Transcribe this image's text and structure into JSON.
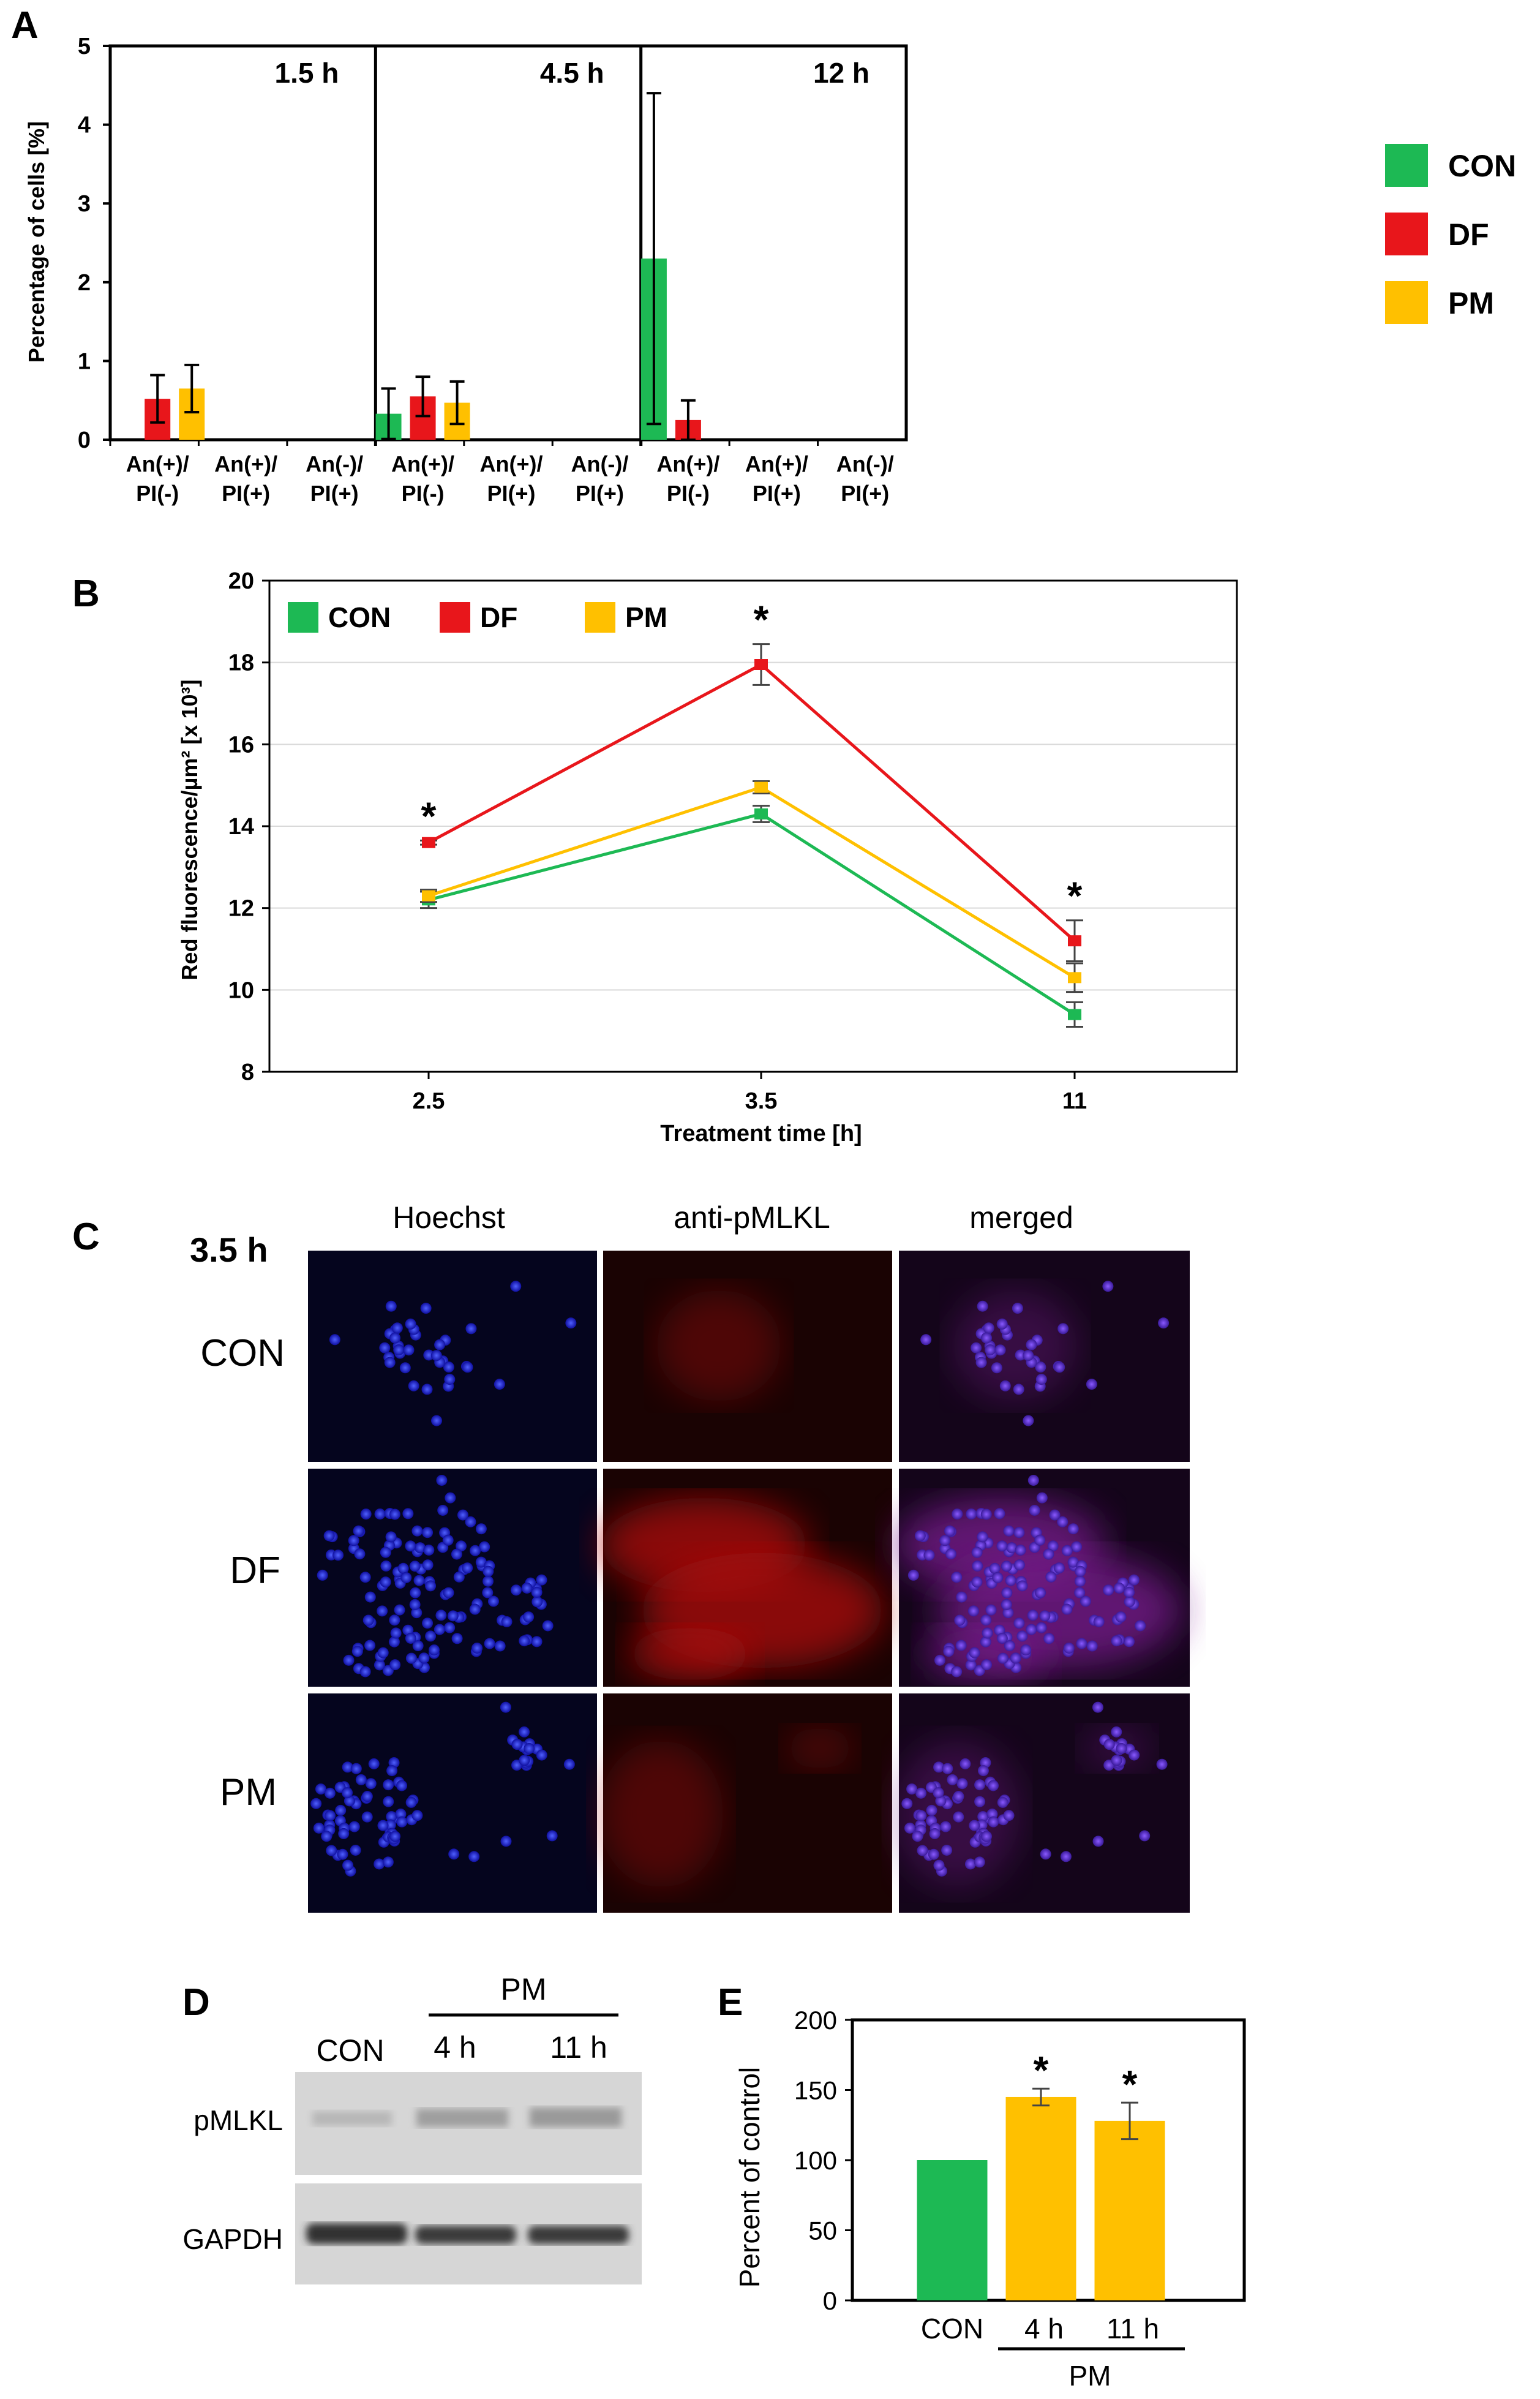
{
  "colors": {
    "con": "#1DB954",
    "df": "#E8161B",
    "pm": "#FFC000",
    "axis": "#000000",
    "grid": "#D9D9D9",
    "blot_bg": "#d8d8d8"
  },
  "panel_labels": [
    "A",
    "B",
    "C",
    "D",
    "E"
  ],
  "chart_data": [
    {
      "id": "A",
      "type": "bar",
      "ylabel": "Percentage  of cells [%]",
      "ylim": [
        0,
        5
      ],
      "yticks": [
        "0",
        "1",
        "2",
        "3",
        "4",
        "5"
      ],
      "legend": [
        {
          "name": "CON",
          "color_key": "con"
        },
        {
          "name": "DF",
          "color_key": "df"
        },
        {
          "name": "PM",
          "color_key": "pm"
        }
      ],
      "categories": [
        {
          "line1": "An(+)/",
          "line2": "PI(-)"
        },
        {
          "line1": "An(+)/",
          "line2": "PI(+)"
        },
        {
          "line1": "An(-)/",
          "line2": "PI(+)"
        }
      ],
      "subpanels": [
        {
          "title": "1.5 h",
          "series": {
            "CON": [
              0,
              0,
              0
            ],
            "DF": [
              0.52,
              0,
              0
            ],
            "PM": [
              0.65,
              0,
              0
            ]
          },
          "errors": {
            "CON": [
              0,
              0,
              0
            ],
            "DF": [
              0.3,
              0,
              0
            ],
            "PM": [
              0.3,
              0,
              0
            ]
          }
        },
        {
          "title": "4.5 h",
          "series": {
            "CON": [
              0.33,
              0,
              0
            ],
            "DF": [
              0.55,
              0,
              0
            ],
            "PM": [
              0.47,
              0,
              0
            ]
          },
          "errors": {
            "CON": [
              0.32,
              0,
              0
            ],
            "DF": [
              0.25,
              0,
              0
            ],
            "PM": [
              0.27,
              0,
              0
            ]
          }
        },
        {
          "title": "12 h",
          "series": {
            "CON": [
              2.3,
              0,
              0
            ],
            "DF": [
              0.25,
              0,
              0
            ],
            "PM": [
              0,
              0,
              0
            ]
          },
          "errors": {
            "CON": [
              2.1,
              0,
              0
            ],
            "DF": [
              0.25,
              0,
              0
            ],
            "PM": [
              0,
              0,
              0
            ]
          }
        }
      ]
    },
    {
      "id": "B",
      "type": "line",
      "xlabel": "Treatment time [h]",
      "ylabel": "Red fluorescence/µm² [x 10³]",
      "categories": [
        "2.5",
        "3.5",
        "11"
      ],
      "ylim": [
        8,
        20
      ],
      "yticks": [
        "8",
        "10",
        "12",
        "14",
        "16",
        "18",
        "20"
      ],
      "grid": true,
      "legend_position": "top-left",
      "series": [
        {
          "name": "CON",
          "color_key": "con",
          "values": [
            12.2,
            14.3,
            9.4
          ],
          "errors": [
            0.2,
            0.2,
            0.3
          ]
        },
        {
          "name": "DF",
          "color_key": "df",
          "values": [
            13.6,
            17.95,
            11.2
          ],
          "errors": [
            0.05,
            0.5,
            0.5
          ]
        },
        {
          "name": "PM",
          "color_key": "pm",
          "values": [
            12.3,
            14.95,
            10.3
          ],
          "errors": [
            0.15,
            0.15,
            0.35
          ]
        }
      ],
      "significance": [
        "*",
        "*",
        "*"
      ]
    },
    {
      "id": "E",
      "type": "bar",
      "ylabel": "Percent of control",
      "ylim": [
        0,
        200
      ],
      "yticks": [
        "0",
        "50",
        "100",
        "150",
        "200"
      ],
      "categories": [
        "CON",
        "4 h",
        "11 h"
      ],
      "values": [
        100,
        145,
        128
      ],
      "errors": [
        0,
        6,
        13
      ],
      "bar_colors": [
        "con",
        "pm",
        "pm"
      ],
      "significance": [
        "",
        "*",
        "*"
      ],
      "group_label": "PM"
    }
  ],
  "panel_c": {
    "time_label": "3.5 h",
    "column_titles": [
      "Hoechst",
      "anti-pMLKL",
      "merged"
    ],
    "row_labels": [
      "CON",
      "DF",
      "PM"
    ]
  },
  "panel_d": {
    "group_label": "PM",
    "lane_labels": [
      "CON",
      "4 h",
      "11 h"
    ],
    "row_labels": [
      "pMLKL",
      "GAPDH"
    ]
  }
}
